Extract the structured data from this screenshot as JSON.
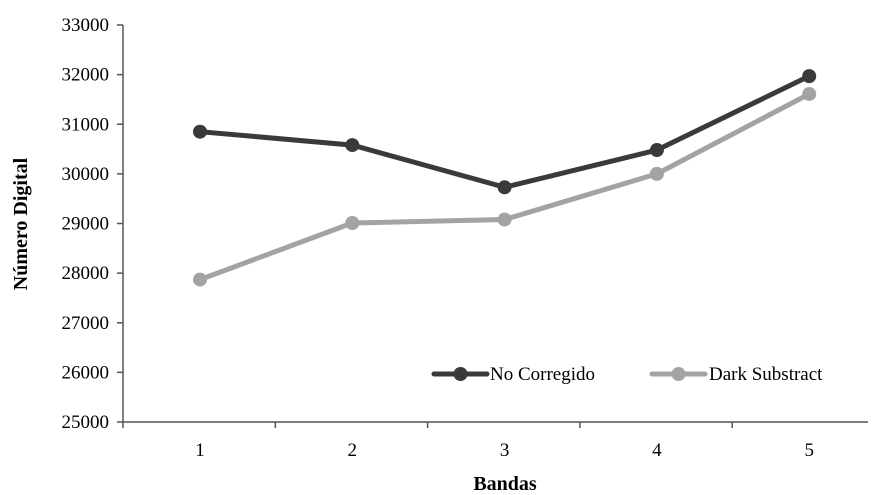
{
  "chart_data": {
    "type": "line",
    "title": "",
    "xlabel": "Bandas",
    "ylabel": "Número Digital",
    "categories": [
      "1",
      "2",
      "3",
      "4",
      "5"
    ],
    "ylim": [
      25000,
      33000
    ],
    "yticks": [
      25000,
      26000,
      27000,
      28000,
      29000,
      30000,
      31000,
      32000,
      33000
    ],
    "yticks_labels": [
      "25000",
      "26000",
      "27000",
      "28000",
      "29000",
      "30000",
      "31000",
      "32000",
      "33000"
    ],
    "grid": false,
    "legend_position": "bottom-right",
    "series": [
      {
        "name": "No Corregido",
        "color": "#3a3a3a",
        "values": [
          30850,
          30580,
          29730,
          30480,
          31970
        ]
      },
      {
        "name": "Dark Substract",
        "color": "#a3a3a3",
        "values": [
          27870,
          29010,
          29080,
          30000,
          31610
        ]
      }
    ]
  }
}
